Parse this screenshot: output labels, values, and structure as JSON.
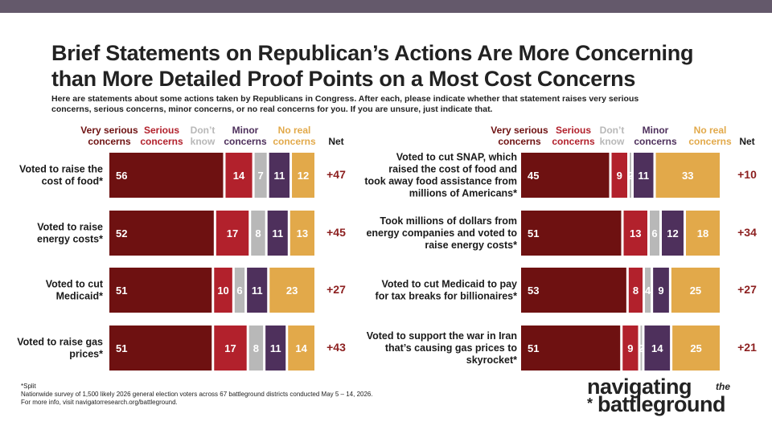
{
  "title_line1": "Brief Statements on Republican’s Actions Are More Concerning",
  "title_line2": "than More Detailed Proof Points on a Most Cost Concerns",
  "subtitle_line1": "Here are statements about some actions taken by Republicans in Congress. After each, please indicate whether that statement raises very serious",
  "subtitle_line2": "concerns, serious concerns, minor concerns, or no real concerns for you. If you are unsure, just indicate that.",
  "footnote_split": "*Split",
  "footnote_survey": "Nationwide survey of 1,500 likely 2026 general election voters across 67 battleground districts conducted May 5 – 14, 2026.",
  "footnote_info": "For more info, visit navigatorresearch.org/battleground.",
  "brand": {
    "word1": "navigating",
    "word2": "the",
    "word3": "battleground",
    "star": "*"
  },
  "colors": {
    "very_serious": "#6e1111",
    "serious": "#b2212c",
    "dont_know": "#b8b8b8",
    "minor": "#4e305c",
    "no_real": "#e2a94a",
    "net": "#8c1f1f",
    "top_bar": "#64596b"
  },
  "chart_data": [
    {
      "type": "bar",
      "stacked": true,
      "orientation": "horizontal",
      "legend": [
        {
          "lines": [
            "Very serious",
            "concerns"
          ],
          "color": "#6e1111"
        },
        {
          "lines": [
            "Serious",
            "concerns"
          ],
          "color": "#b2212c"
        },
        {
          "lines": [
            "Don’t",
            "know"
          ],
          "color": "#b8b8b8"
        },
        {
          "lines": [
            "Minor",
            "concerns"
          ],
          "color": "#4e305c"
        },
        {
          "lines": [
            "No real",
            "concerns"
          ],
          "color": "#e2a94a"
        }
      ],
      "net_label": "Net",
      "categories": [
        [
          "Voted to raise the",
          "cost of food*"
        ],
        [
          "Voted to raise",
          "energy costs*"
        ],
        [
          "Voted to cut",
          "Medicaid*"
        ],
        [
          "Voted to raise gas",
          "prices*"
        ]
      ],
      "series": [
        {
          "name": "Very serious concerns",
          "values": [
            56,
            52,
            51,
            51
          ]
        },
        {
          "name": "Serious concerns",
          "values": [
            14,
            17,
            10,
            17
          ]
        },
        {
          "name": "Don’t know",
          "values": [
            7,
            8,
            6,
            8
          ]
        },
        {
          "name": "Minor concerns",
          "values": [
            11,
            11,
            11,
            11
          ]
        },
        {
          "name": "No real concerns",
          "values": [
            12,
            13,
            23,
            14
          ]
        }
      ],
      "net": [
        "+47",
        "+45",
        "+27",
        "+43"
      ]
    },
    {
      "type": "bar",
      "stacked": true,
      "orientation": "horizontal",
      "legend": [
        {
          "lines": [
            "Very serious",
            "concerns"
          ],
          "color": "#6e1111"
        },
        {
          "lines": [
            "Serious",
            "concerns"
          ],
          "color": "#b2212c"
        },
        {
          "lines": [
            "Don’t",
            "know"
          ],
          "color": "#b8b8b8"
        },
        {
          "lines": [
            "Minor",
            "concerns"
          ],
          "color": "#4e305c"
        },
        {
          "lines": [
            "No real",
            "concerns"
          ],
          "color": "#e2a94a"
        }
      ],
      "net_label": "Net",
      "categories": [
        [
          "Voted to cut SNAP, which",
          "raised the cost of food and",
          "took away food assistance from",
          "millions of Americans*"
        ],
        [
          "Took millions of dollars from",
          "energy companies and voted to",
          "raise energy costs*"
        ],
        [
          "Voted to cut Medicaid to pay",
          "for tax breaks for billionaires*"
        ],
        [
          "Voted to support the war in Iran",
          "that’s causing gas prices to",
          "skyrocket*"
        ]
      ],
      "series": [
        {
          "name": "Very serious concerns",
          "values": [
            45,
            51,
            53,
            51
          ]
        },
        {
          "name": "Serious concerns",
          "values": [
            9,
            13,
            8,
            9
          ]
        },
        {
          "name": "Don’t know",
          "values": [
            2,
            6,
            4,
            2
          ]
        },
        {
          "name": "Minor concerns",
          "values": [
            11,
            12,
            9,
            14
          ]
        },
        {
          "name": "No real concerns",
          "values": [
            33,
            18,
            25,
            25
          ]
        }
      ],
      "net": [
        "+10",
        "+34",
        "+27",
        "+21"
      ]
    }
  ]
}
